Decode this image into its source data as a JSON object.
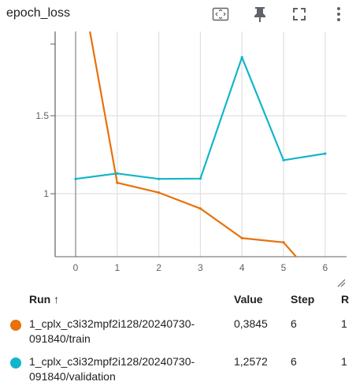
{
  "header": {
    "title": "epoch_loss",
    "icons": [
      "fit-domain-icon",
      "pin-icon",
      "fullscreen-icon",
      "more-vert-icon"
    ]
  },
  "colors": {
    "train": "#e8710a",
    "validation": "#12b5cb",
    "grid": "#e0e0e0",
    "axis": "#9e9e9e"
  },
  "chart_data": {
    "type": "line",
    "title": "",
    "xlabel": "",
    "ylabel": "",
    "x_ticks": [
      "0",
      "1",
      "2",
      "3",
      "4",
      "5",
      "6"
    ],
    "y_ticks": [
      "1",
      "1.5"
    ],
    "xlim": [
      -0.5,
      6.5
    ],
    "ylim": [
      0.6,
      2.0
    ],
    "grid": true,
    "series": [
      {
        "name": "1_cplx_c3i32mpf2i128/20240730-091840/train",
        "color": "#e8710a",
        "x": [
          0,
          1,
          2,
          3,
          4,
          5,
          6
        ],
        "y": [
          2.55,
          1.07,
          1.007,
          0.905,
          0.715,
          0.688,
          0.3845
        ]
      },
      {
        "name": "1_cplx_c3i32mpf2i128/20240730-091840/validation",
        "color": "#12b5cb",
        "x": [
          0,
          1,
          2,
          3,
          4,
          5,
          6
        ],
        "y": [
          1.095,
          1.13,
          1.095,
          1.097,
          1.875,
          1.215,
          1.2572
        ]
      }
    ]
  },
  "table": {
    "columns": {
      "run": "Run ↑",
      "value": "Value",
      "step": "Step",
      "relative": "R"
    },
    "rows": [
      {
        "run": "1_cplx_c3i32mpf2i128/20240730-091840/train",
        "value": "0,3845",
        "step": "6",
        "relative": "1",
        "color": "#e8710a"
      },
      {
        "run": "1_cplx_c3i32mpf2i128/20240730-091840/validation",
        "value": "1,2572",
        "step": "6",
        "relative": "1",
        "color": "#12b5cb"
      }
    ]
  }
}
